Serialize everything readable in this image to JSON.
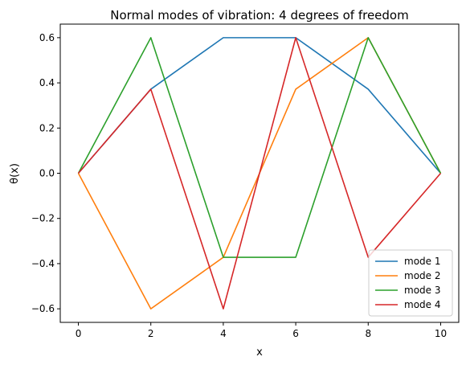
{
  "chart_data": {
    "type": "line",
    "title": "Normal modes of vibration: 4 degrees of freedom",
    "xlabel": "x",
    "ylabel": "θ(x)",
    "xlim": [
      -0.5,
      10.5
    ],
    "ylim": [
      -0.66,
      0.66
    ],
    "xticks": [
      0,
      2,
      4,
      6,
      8,
      10
    ],
    "yticks": [
      -0.6,
      -0.4,
      -0.2,
      0.0,
      0.2,
      0.4,
      0.6
    ],
    "ytick_labels": [
      "−0.6",
      "−0.4",
      "−0.2",
      "0.0",
      "0.2",
      "0.4",
      "0.6"
    ],
    "grid": false,
    "legend_position": "lower-right",
    "x": [
      0,
      2,
      4,
      6,
      8,
      10
    ],
    "series": [
      {
        "name": "mode 1",
        "color": "#1f77b4",
        "values": [
          0,
          0.372,
          0.6,
          0.6,
          0.372,
          0
        ]
      },
      {
        "name": "mode 2",
        "color": "#ff7f0e",
        "values": [
          0,
          -0.6,
          -0.372,
          0.372,
          0.6,
          0
        ]
      },
      {
        "name": "mode 3",
        "color": "#2ca02c",
        "values": [
          0,
          0.6,
          -0.372,
          -0.372,
          0.6,
          0
        ]
      },
      {
        "name": "mode 4",
        "color": "#d62728",
        "values": [
          0,
          0.372,
          -0.6,
          0.6,
          -0.372,
          0
        ]
      }
    ]
  }
}
